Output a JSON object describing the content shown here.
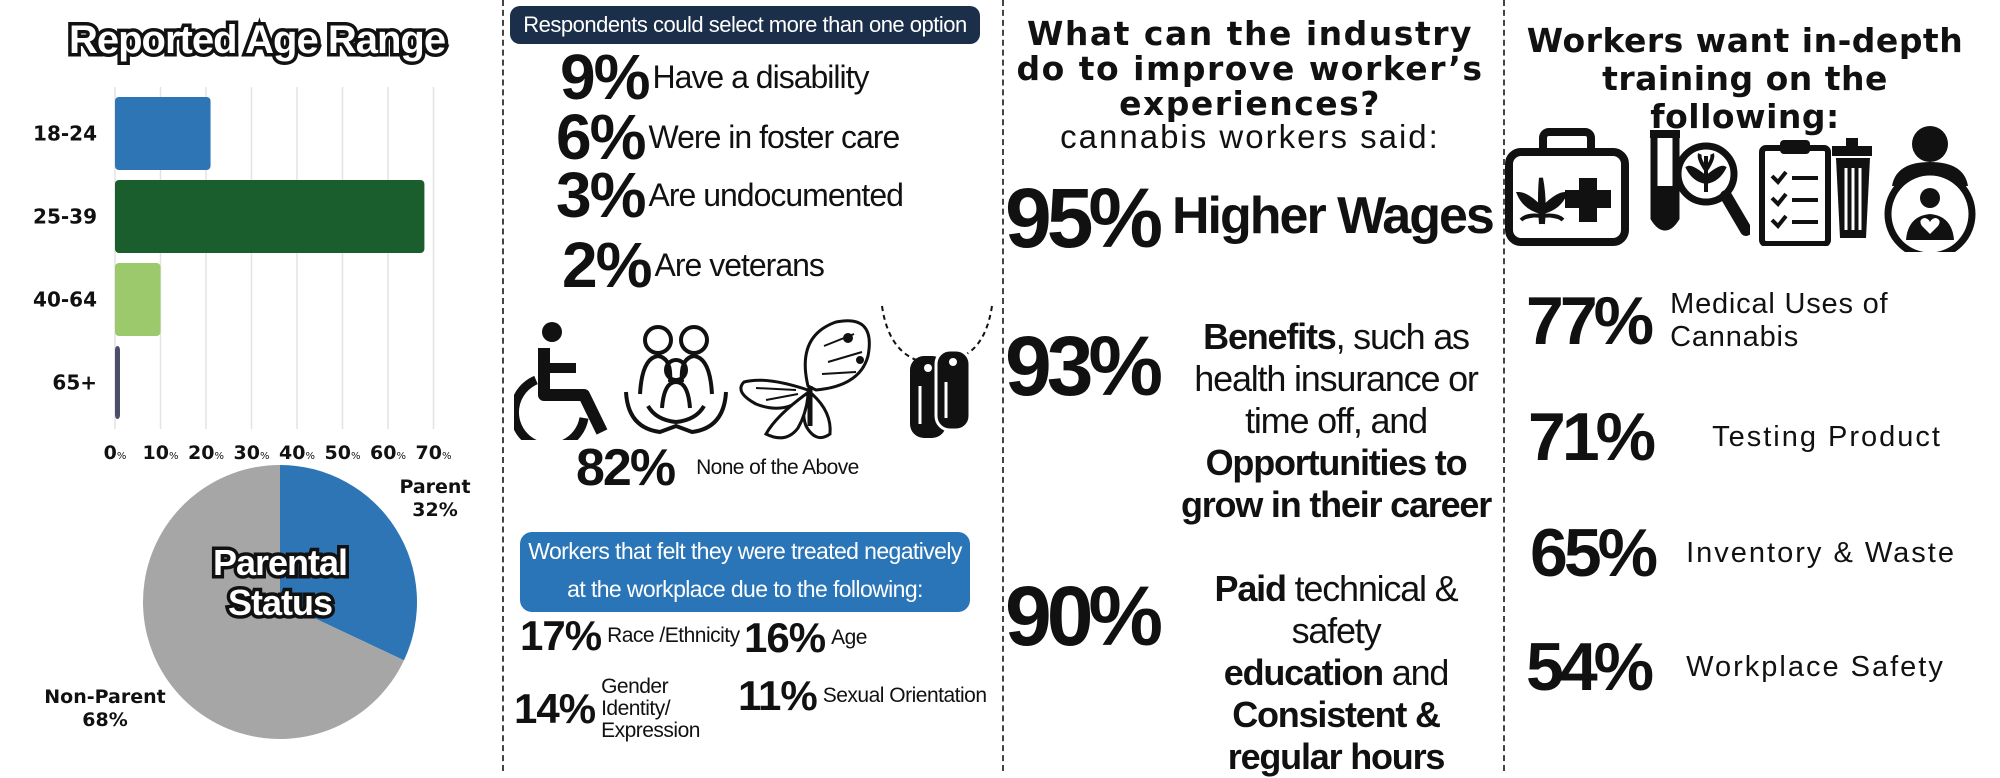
{
  "age_panel": {
    "title": "Reported Age Range",
    "chart_data": {
      "type": "bar",
      "orientation": "horizontal",
      "title": "Reported Age Range",
      "categories": [
        "18-24",
        "25-39",
        "40-64",
        "65+"
      ],
      "values": [
        21,
        68,
        10,
        1
      ],
      "colors": [
        "#2e75b6",
        "#1a5e2e",
        "#9cc96b",
        "#4a4e6b"
      ],
      "xticks": [
        "0",
        "10",
        "20",
        "30",
        "40",
        "50",
        "60",
        "70"
      ],
      "tick_suffix": "%",
      "xlim": [
        0,
        75
      ],
      "grid": true
    }
  },
  "parent_panel": {
    "title_line1": "Parental",
    "title_line2": "Status",
    "chart_data": {
      "type": "pie",
      "categories": [
        "Parent",
        "Non-Parent"
      ],
      "values": [
        32,
        68
      ],
      "colors": [
        "#2e75b6",
        "#a6a6a6"
      ]
    },
    "parent_label": "Parent",
    "parent_value": "32%",
    "nonparent_label": "Non-Parent",
    "nonparent_value": "68%"
  },
  "identity_panel": {
    "header": "Respondents could select more than one option",
    "stats": [
      {
        "pct": "9%",
        "text": "Have a disability"
      },
      {
        "pct": "6%",
        "text": "Were in foster care"
      },
      {
        "pct": "3%",
        "text": "Are undocumented"
      },
      {
        "pct": "2%",
        "text": "Are veterans"
      }
    ],
    "none_pct": "82%",
    "none_text": "None of the Above",
    "icons": [
      "wheelchair-icon",
      "family-icon",
      "butterfly-icon",
      "dog-tags-icon"
    ],
    "negative_header_line1": "Workers that felt they were  treated negatively",
    "negative_header_line2": "at the workplace due to the following:",
    "negative": [
      {
        "pct": "17%",
        "text": "Race /Ethnicity"
      },
      {
        "pct": "16%",
        "text": "Age"
      },
      {
        "pct": "14%",
        "text": "Gender Identity/ Expression"
      },
      {
        "pct": "11%",
        "text": "Sexual Orientation"
      }
    ]
  },
  "improve_panel": {
    "question": "What can the industry do to improve worker’s experiences?",
    "subtitle": "cannabis workers said:",
    "items": [
      {
        "pct": "95%"
      },
      {
        "pct": "93%"
      },
      {
        "pct": "90%"
      }
    ],
    "wages": "Higher Wages",
    "benefits_bold": "Benefits",
    "benefits_rest": ", such as health insurance or time off, and",
    "opportunities": "Opportunities to grow in their career",
    "paid_bold": "Paid",
    "paid_rest": " technical & safety",
    "education_bold": "education",
    "and": " and",
    "consistent": "Consistent & regular hours"
  },
  "training_panel": {
    "title": "Workers want in-depth training on the following:",
    "icons": [
      "medical-kit-icon",
      "test-tube-magnifier-icon",
      "checklist-trash-icon",
      "worker-safety-icon"
    ],
    "items": [
      {
        "pct": "77%",
        "text": "Medical Uses of Cannabis"
      },
      {
        "pct": "71%",
        "text": "Testing Product"
      },
      {
        "pct": "65%",
        "text": "Inventory & Waste"
      },
      {
        "pct": "54%",
        "text": "Workplace Safety"
      }
    ]
  }
}
